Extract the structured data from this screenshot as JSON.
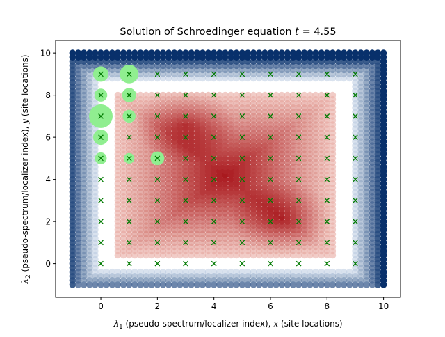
{
  "chart_data": {
    "type": "scatter",
    "title_prefix": "Solution of Schroedinger equation ",
    "title_var": "t",
    "title_eq": " = 4.55",
    "xlabel_sym": "λ",
    "xlabel_sub": "1",
    "xlabel_rest": " (pseudo-spectrum/localizer index), ",
    "xlabel_var": "x",
    "xlabel_tail": " (site locations)",
    "ylabel_sym": "λ",
    "ylabel_sub": "2",
    "ylabel_rest": " (pseudo-spectrum/localizer index), ",
    "ylabel_var": "y",
    "ylabel_tail": " (site locations)",
    "xlim": [
      -1.6,
      10.6
    ],
    "ylim": [
      -1.6,
      10.6
    ],
    "xticks": [
      0,
      2,
      4,
      6,
      8,
      10
    ],
    "yticks": [
      0,
      2,
      4,
      6,
      8,
      10
    ],
    "grid": false,
    "pseudo_spectrum_grid": {
      "start": -1,
      "stop": 10,
      "step": 0.2
    },
    "red_region_center_x": 4.4,
    "red_region_center_y": 4.2,
    "peak_red": [
      {
        "x": 6.4,
        "y": 2.2
      },
      {
        "x": 3.0,
        "y": 6.6
      }
    ],
    "colors": {
      "blue_dark": "#08306b",
      "blue_light": "#deebf7",
      "red_dark": "#a50f15",
      "red_light": "#fee0d2",
      "site_marker": "#007a00",
      "wavefunction": "#90ee90"
    },
    "sites": [
      {
        "x": 0,
        "y": 0
      },
      {
        "x": 0,
        "y": 1
      },
      {
        "x": 0,
        "y": 2
      },
      {
        "x": 0,
        "y": 3
      },
      {
        "x": 0,
        "y": 4
      },
      {
        "x": 0,
        "y": 5
      },
      {
        "x": 0,
        "y": 6
      },
      {
        "x": 0,
        "y": 7
      },
      {
        "x": 0,
        "y": 8
      },
      {
        "x": 0,
        "y": 9
      },
      {
        "x": 1,
        "y": 0
      },
      {
        "x": 1,
        "y": 1
      },
      {
        "x": 1,
        "y": 2
      },
      {
        "x": 1,
        "y": 3
      },
      {
        "x": 1,
        "y": 4
      },
      {
        "x": 1,
        "y": 5
      },
      {
        "x": 1,
        "y": 6
      },
      {
        "x": 1,
        "y": 7
      },
      {
        "x": 1,
        "y": 8
      },
      {
        "x": 1,
        "y": 9
      },
      {
        "x": 2,
        "y": 0
      },
      {
        "x": 2,
        "y": 1
      },
      {
        "x": 2,
        "y": 2
      },
      {
        "x": 2,
        "y": 3
      },
      {
        "x": 2,
        "y": 4
      },
      {
        "x": 2,
        "y": 5
      },
      {
        "x": 2,
        "y": 6
      },
      {
        "x": 2,
        "y": 7
      },
      {
        "x": 2,
        "y": 8
      },
      {
        "x": 2,
        "y": 9
      },
      {
        "x": 3,
        "y": 0
      },
      {
        "x": 3,
        "y": 1
      },
      {
        "x": 3,
        "y": 2
      },
      {
        "x": 3,
        "y": 3
      },
      {
        "x": 3,
        "y": 4
      },
      {
        "x": 3,
        "y": 5
      },
      {
        "x": 3,
        "y": 6
      },
      {
        "x": 3,
        "y": 7
      },
      {
        "x": 3,
        "y": 8
      },
      {
        "x": 3,
        "y": 9
      },
      {
        "x": 4,
        "y": 0
      },
      {
        "x": 4,
        "y": 1
      },
      {
        "x": 4,
        "y": 2
      },
      {
        "x": 4,
        "y": 3
      },
      {
        "x": 4,
        "y": 4
      },
      {
        "x": 4,
        "y": 5
      },
      {
        "x": 4,
        "y": 6
      },
      {
        "x": 4,
        "y": 7
      },
      {
        "x": 4,
        "y": 8
      },
      {
        "x": 4,
        "y": 9
      },
      {
        "x": 5,
        "y": 0
      },
      {
        "x": 5,
        "y": 1
      },
      {
        "x": 5,
        "y": 2
      },
      {
        "x": 5,
        "y": 3
      },
      {
        "x": 5,
        "y": 4
      },
      {
        "x": 5,
        "y": 5
      },
      {
        "x": 5,
        "y": 6
      },
      {
        "x": 5,
        "y": 7
      },
      {
        "x": 5,
        "y": 8
      },
      {
        "x": 5,
        "y": 9
      },
      {
        "x": 6,
        "y": 0
      },
      {
        "x": 6,
        "y": 1
      },
      {
        "x": 6,
        "y": 2
      },
      {
        "x": 6,
        "y": 3
      },
      {
        "x": 6,
        "y": 4
      },
      {
        "x": 6,
        "y": 5
      },
      {
        "x": 6,
        "y": 6
      },
      {
        "x": 6,
        "y": 7
      },
      {
        "x": 6,
        "y": 8
      },
      {
        "x": 6,
        "y": 9
      },
      {
        "x": 7,
        "y": 0
      },
      {
        "x": 7,
        "y": 1
      },
      {
        "x": 7,
        "y": 2
      },
      {
        "x": 7,
        "y": 3
      },
      {
        "x": 7,
        "y": 4
      },
      {
        "x": 7,
        "y": 5
      },
      {
        "x": 7,
        "y": 6
      },
      {
        "x": 7,
        "y": 7
      },
      {
        "x": 7,
        "y": 8
      },
      {
        "x": 7,
        "y": 9
      },
      {
        "x": 8,
        "y": 0
      },
      {
        "x": 8,
        "y": 1
      },
      {
        "x": 8,
        "y": 2
      },
      {
        "x": 8,
        "y": 3
      },
      {
        "x": 8,
        "y": 4
      },
      {
        "x": 8,
        "y": 5
      },
      {
        "x": 8,
        "y": 6
      },
      {
        "x": 8,
        "y": 7
      },
      {
        "x": 8,
        "y": 8
      },
      {
        "x": 8,
        "y": 9
      },
      {
        "x": 9,
        "y": 0
      },
      {
        "x": 9,
        "y": 1
      },
      {
        "x": 9,
        "y": 2
      },
      {
        "x": 9,
        "y": 3
      },
      {
        "x": 9,
        "y": 4
      },
      {
        "x": 9,
        "y": 5
      },
      {
        "x": 9,
        "y": 6
      },
      {
        "x": 9,
        "y": 7
      },
      {
        "x": 9,
        "y": 8
      },
      {
        "x": 9,
        "y": 9
      }
    ],
    "wavefunction": [
      {
        "x": 0,
        "y": 7,
        "amp": 1.0
      },
      {
        "x": 1,
        "y": 9,
        "amp": 0.62
      },
      {
        "x": 0,
        "y": 9,
        "amp": 0.42
      },
      {
        "x": 0,
        "y": 6,
        "amp": 0.42
      },
      {
        "x": 1,
        "y": 8,
        "amp": 0.36
      },
      {
        "x": 2,
        "y": 5,
        "amp": 0.34
      },
      {
        "x": 0,
        "y": 8,
        "amp": 0.3
      },
      {
        "x": 1,
        "y": 7,
        "amp": 0.3
      },
      {
        "x": 0,
        "y": 5,
        "amp": 0.25
      },
      {
        "x": 1,
        "y": 5,
        "amp": 0.2
      }
    ]
  }
}
